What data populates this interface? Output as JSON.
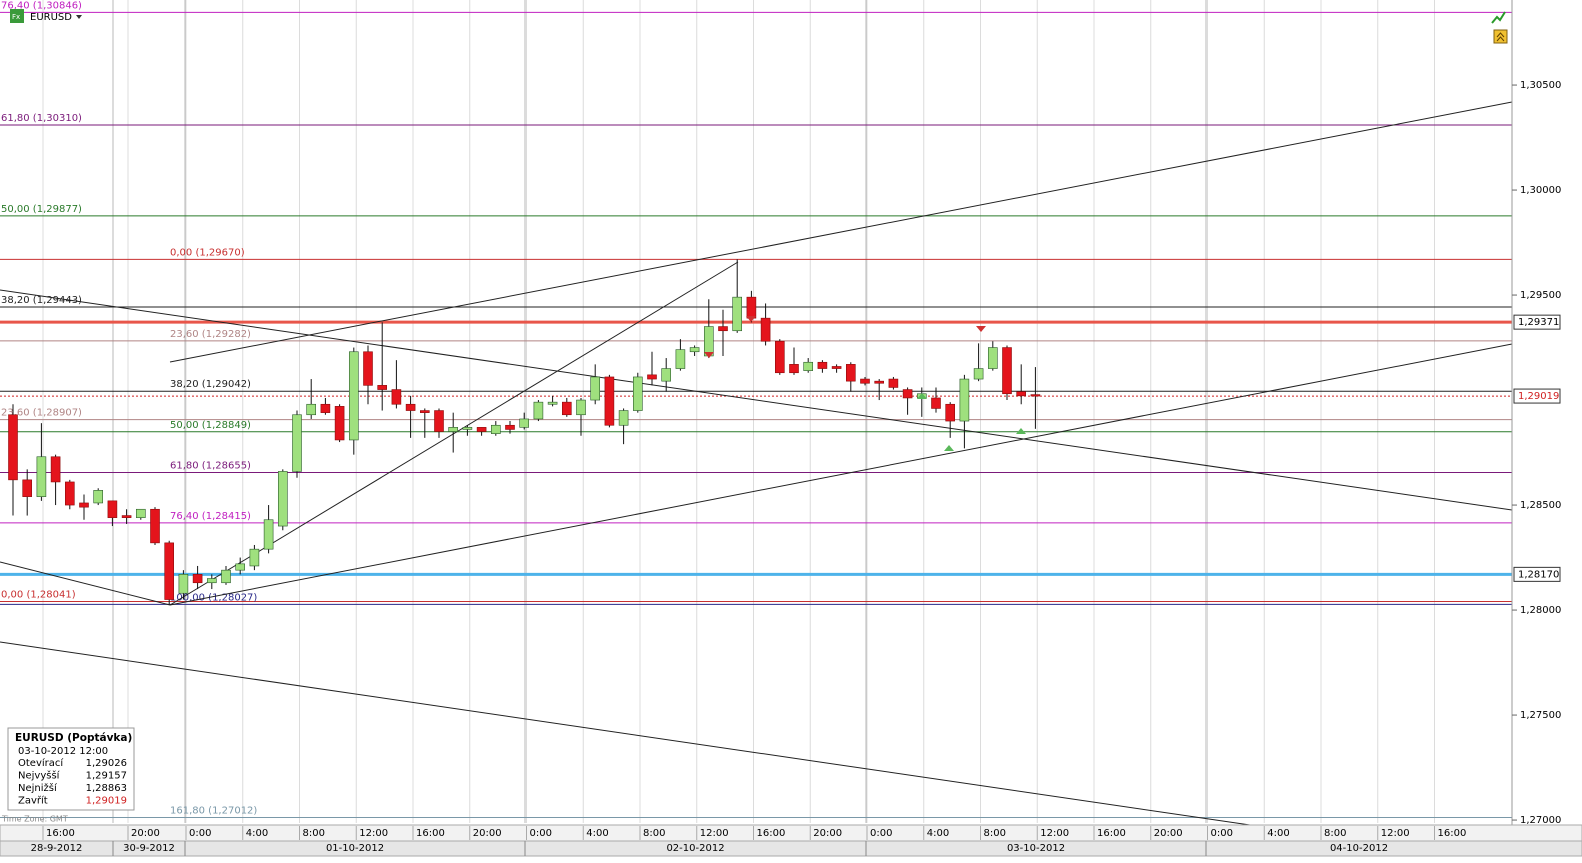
{
  "chart_data": {
    "type": "candlestick",
    "symbol": "EURUSD",
    "ylim": [
      1.26986,
      1.30905
    ],
    "yticks": [
      {
        "value": 1.305,
        "label": "1,30500"
      },
      {
        "value": 1.3,
        "label": "1,30000"
      },
      {
        "value": 1.295,
        "label": "1,29500"
      },
      {
        "value": 1.285,
        "label": "1,28500"
      },
      {
        "value": 1.28,
        "label": "1,28000"
      },
      {
        "value": 1.275,
        "label": "1,27500"
      },
      {
        "value": 1.27,
        "label": "1,27000"
      }
    ],
    "time_labels": [
      "16:00",
      "20:00",
      "0:00",
      "4:00",
      "8:00",
      "12:00",
      "16:00",
      "20:00",
      "0:00",
      "4:00",
      "8:00",
      "12:00",
      "16:00",
      "20:00",
      "0:00",
      "4:00",
      "8:00",
      "12:00",
      "16:00",
      "20:00",
      "0:00",
      "4:00",
      "8:00",
      "12:00",
      "16:00"
    ],
    "date_labels": [
      "28-9-2012",
      "30-9-2012",
      "01-10-2012",
      "02-10-2012",
      "03-10-2012",
      "04-10-2012"
    ],
    "up_color": "#9fe07e",
    "down_color": "#e4141c",
    "ohlc": [
      [
        1.2893,
        1.2898,
        1.2845,
        1.2862
      ],
      [
        1.2862,
        1.2867,
        1.2845,
        1.2854
      ],
      [
        1.2854,
        1.2889,
        1.2852,
        1.2873
      ],
      [
        1.2873,
        1.2874,
        1.285,
        1.2861
      ],
      [
        1.2861,
        1.2862,
        1.2848,
        1.285
      ],
      [
        1.2851,
        1.2855,
        1.2843,
        1.2849
      ],
      [
        1.2851,
        1.2858,
        1.285,
        1.2857
      ],
      [
        1.2852,
        1.2852,
        1.284,
        1.2844
      ],
      [
        1.2845,
        1.2848,
        1.2841,
        1.2844
      ],
      [
        1.2844,
        1.2848,
        1.2843,
        1.2848
      ],
      [
        1.2848,
        1.2849,
        1.2831,
        1.2832
      ],
      [
        1.2832,
        1.2833,
        1.28027,
        1.2805
      ],
      [
        1.2808,
        1.2819,
        1.2805,
        1.2817
      ],
      [
        1.2817,
        1.2821,
        1.281,
        1.2813
      ],
      [
        1.2813,
        1.2817,
        1.281,
        1.2815
      ],
      [
        1.2813,
        1.2821,
        1.2812,
        1.2819
      ],
      [
        1.2819,
        1.2825,
        1.2817,
        1.2822
      ],
      [
        1.2821,
        1.2831,
        1.2819,
        1.2829
      ],
      [
        1.2829,
        1.285,
        1.2827,
        1.2843
      ],
      [
        1.284,
        1.2867,
        1.2838,
        1.2866
      ],
      [
        1.2866,
        1.2895,
        1.2863,
        1.2893
      ],
      [
        1.2893,
        1.291,
        1.2891,
        1.2898
      ],
      [
        1.2898,
        1.2901,
        1.2893,
        1.2894
      ],
      [
        1.2897,
        1.2898,
        1.288,
        1.2881
      ],
      [
        1.2881,
        1.2925,
        1.2874,
        1.2923
      ],
      [
        1.2923,
        1.2926,
        1.2898,
        1.2907
      ],
      [
        1.2907,
        1.2937,
        1.2895,
        1.2905
      ],
      [
        1.2905,
        1.2919,
        1.2896,
        1.2898
      ],
      [
        1.2898,
        1.2902,
        1.2882,
        1.2895
      ],
      [
        1.2895,
        1.2896,
        1.2882,
        1.2894
      ],
      [
        1.2895,
        1.2896,
        1.2882,
        1.2885
      ],
      [
        1.2885,
        1.2894,
        1.2875,
        1.2887
      ],
      [
        1.2886,
        1.2888,
        1.2883,
        1.2887
      ],
      [
        1.2887,
        1.2887,
        1.2883,
        1.2885
      ],
      [
        1.2884,
        1.289,
        1.2883,
        1.2888
      ],
      [
        1.2888,
        1.289,
        1.2884,
        1.2886
      ],
      [
        1.2887,
        1.2894,
        1.2886,
        1.2891
      ],
      [
        1.2891,
        1.29,
        1.289,
        1.2899
      ],
      [
        1.2898,
        1.2902,
        1.2897,
        1.2899
      ],
      [
        1.2899,
        1.2901,
        1.2892,
        1.2893
      ],
      [
        1.2893,
        1.2901,
        1.2883,
        1.29
      ],
      [
        1.29,
        1.2917,
        1.2898,
        1.2911
      ],
      [
        1.2911,
        1.2912,
        1.2887,
        1.2888
      ],
      [
        1.2888,
        1.2896,
        1.2879,
        1.2895
      ],
      [
        1.2895,
        1.2913,
        1.2894,
        1.2911
      ],
      [
        1.2912,
        1.2923,
        1.2907,
        1.291
      ],
      [
        1.2909,
        1.292,
        1.2904,
        1.2915
      ],
      [
        1.2915,
        1.2929,
        1.2914,
        1.2924
      ],
      [
        1.2923,
        1.2926,
        1.2921,
        1.2925
      ],
      [
        1.2921,
        1.2948,
        1.292,
        1.2935
      ],
      [
        1.2935,
        1.2943,
        1.2921,
        1.2933
      ],
      [
        1.2933,
        1.2967,
        1.2932,
        1.2949
      ],
      [
        1.2949,
        1.2952,
        1.2937,
        1.2939
      ],
      [
        1.2939,
        1.2946,
        1.2926,
        1.2928
      ],
      [
        1.2928,
        1.2929,
        1.2912,
        1.2913
      ],
      [
        1.2917,
        1.2925,
        1.2912,
        1.2913
      ],
      [
        1.2914,
        1.292,
        1.2913,
        1.2918
      ],
      [
        1.2918,
        1.2919,
        1.2913,
        1.2915
      ],
      [
        1.2916,
        1.2917,
        1.2913,
        1.2915
      ],
      [
        1.2917,
        1.2918,
        1.2904,
        1.2909
      ],
      [
        1.291,
        1.2911,
        1.2907,
        1.2908
      ],
      [
        1.2909,
        1.291,
        1.29,
        1.2908
      ],
      [
        1.291,
        1.2911,
        1.2905,
        1.2906
      ],
      [
        1.2905,
        1.2906,
        1.2893,
        1.2901
      ],
      [
        1.2901,
        1.2906,
        1.2892,
        1.2903
      ],
      [
        1.2901,
        1.2906,
        1.2894,
        1.2896
      ],
      [
        1.2898,
        1.2899,
        1.2882,
        1.289
      ],
      [
        1.289,
        1.2912,
        1.2877,
        1.291
      ],
      [
        1.291,
        1.2927,
        1.2909,
        1.2915
      ],
      [
        1.2915,
        1.2928,
        1.2914,
        1.2925
      ],
      [
        1.2925,
        1.2926,
        1.29,
        1.2903
      ],
      [
        1.2904,
        1.2917,
        1.2898,
        1.2902
      ],
      [
        1.29026,
        1.29157,
        1.28863,
        1.29019
      ]
    ],
    "fibonacci": [
      {
        "levels": [
          {
            "value": 1.30846,
            "label": "76,40 (1,30846)",
            "color": "#c020c0"
          },
          {
            "value": 1.3031,
            "label": "61,80 (1,30310)",
            "color": "#7a1a7a"
          },
          {
            "value": 1.29877,
            "label": "50,00 (1,29877)",
            "color": "#2a7a2a"
          },
          {
            "value": 1.29443,
            "label": "38,20 (1,29443)",
            "color": "#222222"
          },
          {
            "value": 1.28907,
            "label": "23,60 (1,28907)",
            "color": "#b08585"
          },
          {
            "value": 1.28041,
            "label": "0,00 (1,28041)",
            "color": "#c83030"
          }
        ]
      },
      {
        "levels": [
          {
            "value": 1.2967,
            "label": "0,00 (1,29670)",
            "color": "#c83030"
          },
          {
            "value": 1.29282,
            "label": "23,60 (1,29282)",
            "color": "#b08585"
          },
          {
            "value": 1.29042,
            "label": "38,20 (1,29042)",
            "color": "#222222"
          },
          {
            "value": 1.28849,
            "label": "50,00 (1,28849)",
            "color": "#2a7a2a"
          },
          {
            "value": 1.28655,
            "label": "61,80 (1,28655)",
            "color": "#7a1a7a"
          },
          {
            "value": 1.28415,
            "label": "76,40 (1,28415)",
            "color": "#c020c0"
          },
          {
            "value": 1.28027,
            "label": "100,00 (1,28027)",
            "color": "#2a2a8a"
          },
          {
            "value": 1.27012,
            "label": "161,80 (1,27012)",
            "color": "#7a98a8"
          }
        ]
      }
    ],
    "price_lines": [
      {
        "value": 1.29371,
        "label": "1,29371",
        "color": "#e8564a",
        "style": "solid",
        "text_color": "#000000"
      },
      {
        "value": 1.2817,
        "label": "1,28170",
        "color": "#4db3ea",
        "style": "solid",
        "text_color": "#000000"
      },
      {
        "value": 1.29019,
        "label": "1,29019",
        "color": "#d02020",
        "style": "dotted",
        "text_color": "#d02020"
      }
    ],
    "info": {
      "title": "EURUSD (Poptávka)",
      "date": "03-10-2012 12:00",
      "rows": [
        [
          "Otevírací",
          "1,29026"
        ],
        [
          "Nejvyšší",
          "1,29157"
        ],
        [
          "Nejnižší",
          "1,28863"
        ],
        [
          "Zavřít",
          "1,29019"
        ]
      ]
    },
    "time_zone": "Time Zone: GMT"
  }
}
